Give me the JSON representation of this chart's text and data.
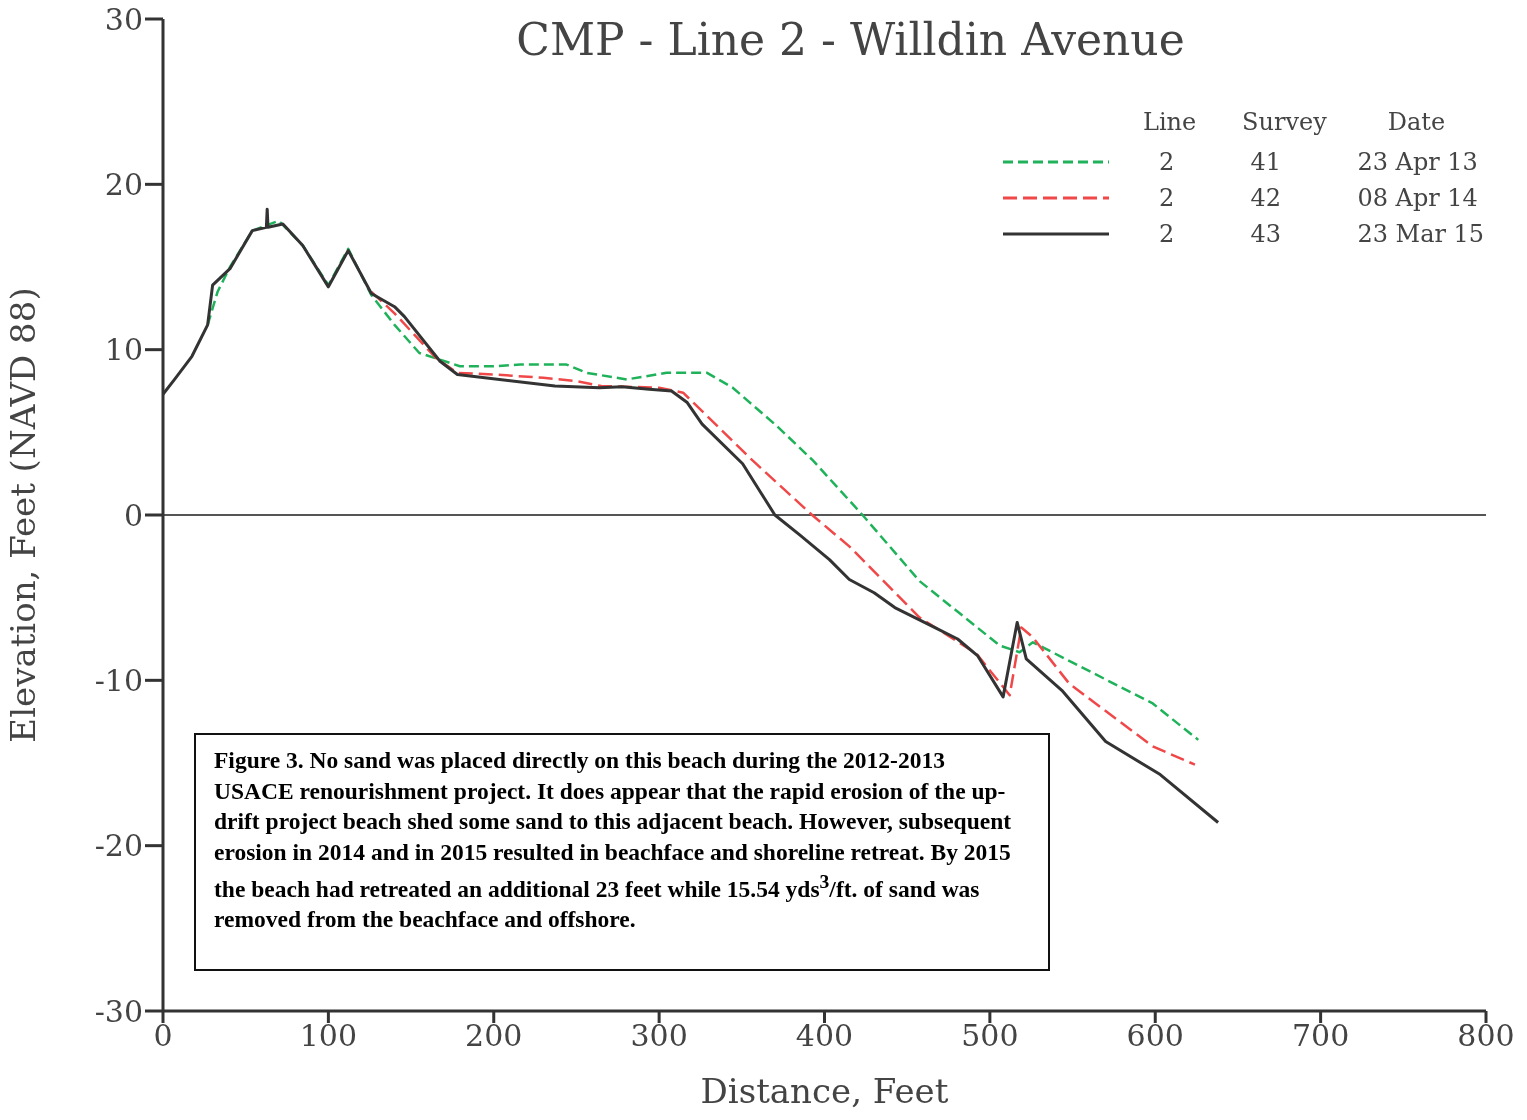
{
  "chart_data": {
    "type": "line",
    "title": "CMP - Line 2 - Willdin Avenue",
    "xlabel": "Distance, Feet",
    "ylabel": "Elevation, Feet (NAVD 88)",
    "legend_title": "Line      Survey        Date",
    "legend": "top right",
    "grid": false,
    "marker": "none",
    "xlim": [
      0,
      800
    ],
    "xticks": [
      0,
      100,
      200,
      300,
      400,
      500,
      600,
      700,
      800
    ],
    "ylim": [
      -30,
      30
    ],
    "yticks": [
      -30,
      -20,
      -10,
      0,
      10,
      20,
      30
    ],
    "ref_lines": [
      {
        "axis": "y",
        "value": 0,
        "color": "#555555"
      }
    ],
    "annotations": [
      "Figure 3.  No sand was placed directly on this beach during the 2012-2013 USACE renourishment project.  It does appear that the rapid erosion of the up-drift project beach shed some sand to this adjacent beach.  However, subsequent erosion in 2014 and in 2015 resulted in beachface and shoreline retreat.  By 2015 the beach had retreated an additional 23 feet while 15.54 yds$^{3}$/ft. of sand was removed from the beachface and offshore."
    ],
    "series": [
      {
        "name": "2          41          23 Apr 13",
        "color": "#1fb25a",
        "line_style": "dashed",
        "x": [
          27,
          33,
          40.5,
          54,
          70,
          84.5,
          100,
          112,
          126,
          140,
          155,
          179.5,
          202,
          216,
          244,
          256,
          280.5,
          304.5,
          329,
          344.5,
          371,
          393,
          423,
          457.5,
          506,
          518,
          526,
          598.5,
          626
        ],
        "values": [
          11.5,
          13.5,
          15,
          17.2,
          17.8,
          16.3,
          13.9,
          16.1,
          13.3,
          11.5,
          9.8,
          9,
          9,
          9.1,
          9.1,
          8.6,
          8.2,
          8.6,
          8.6,
          7.7,
          5.4,
          3.3,
          0,
          -4,
          -7.9,
          -8.3,
          -7.7,
          -11.4,
          -13.6
        ]
      },
      {
        "name": "2          42          08 Apr 14",
        "color": "#f04848",
        "line_style": "dashed",
        "x": [
          126,
          140,
          165,
          178,
          200,
          230,
          250,
          265,
          300,
          314.5,
          356.5,
          392.5,
          415,
          457.5,
          492,
          512,
          519,
          526,
          548,
          598.5,
          624
        ],
        "values": [
          13.5,
          12.2,
          9.5,
          8.6,
          8.5,
          8.3,
          8.1,
          7.8,
          7.7,
          7.4,
          3.3,
          0,
          -1.9,
          -6.2,
          -8.4,
          -10.9,
          -6.8,
          -7.4,
          -10.2,
          -14,
          -15.1
        ]
      },
      {
        "name": "2          43          23 Mar 15",
        "color": "#333333",
        "line_style": "solid",
        "x": [
          0,
          7,
          17.5,
          27,
          30,
          40.5,
          54,
          62.5,
          63,
          63.5,
          72.5,
          84.5,
          100,
          112,
          126,
          140,
          146,
          167.5,
          178,
          237,
          264,
          277.5,
          294,
          307.5,
          317,
          326,
          350.5,
          370,
          385,
          403,
          415,
          430,
          442.5,
          466.5,
          480.5,
          492.5,
          508,
          516.5,
          522,
          543.5,
          570,
          603,
          638
        ],
        "values": [
          7.3,
          8.2,
          9.6,
          11.5,
          13.9,
          14.9,
          17.2,
          17.4,
          18.5,
          17.4,
          17.6,
          16.3,
          13.8,
          16,
          13.4,
          12.6,
          12,
          9.3,
          8.5,
          7.8,
          7.7,
          7.75,
          7.6,
          7.5,
          6.8,
          5.5,
          3.1,
          0,
          -1.2,
          -2.7,
          -3.9,
          -4.7,
          -5.6,
          -6.8,
          -7.5,
          -8.5,
          -11,
          -6.5,
          -8.7,
          -10.6,
          -13.7,
          -15.7,
          -18.6
        ]
      }
    ]
  }
}
